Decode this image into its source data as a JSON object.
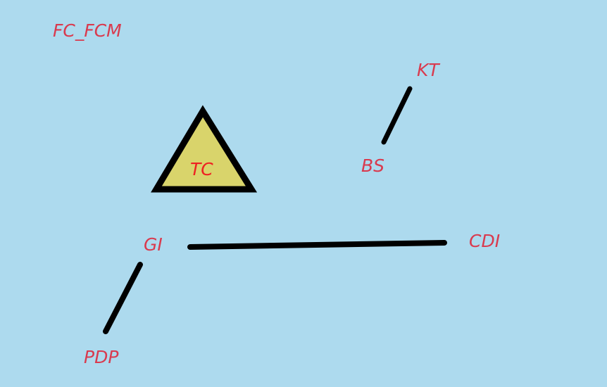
{
  "diagram": {
    "title": "FC_FCM",
    "background_color": "#ADDAEE",
    "label_color": "#D93A4E",
    "line_color": "#000000",
    "nodes": {
      "kt": "KT",
      "bs": "BS",
      "gi": "GI",
      "cdi": "CDI",
      "pdp": "PDP"
    },
    "triangle": {
      "label": "TC",
      "fill_color": "#D9D46B",
      "stroke_color": "#000000",
      "label_color": "#EE2222"
    },
    "links": [
      {
        "from": "BS",
        "to": "KT"
      },
      {
        "from": "GI",
        "to": "CDI"
      },
      {
        "from": "GI",
        "to": "PDP"
      }
    ]
  }
}
